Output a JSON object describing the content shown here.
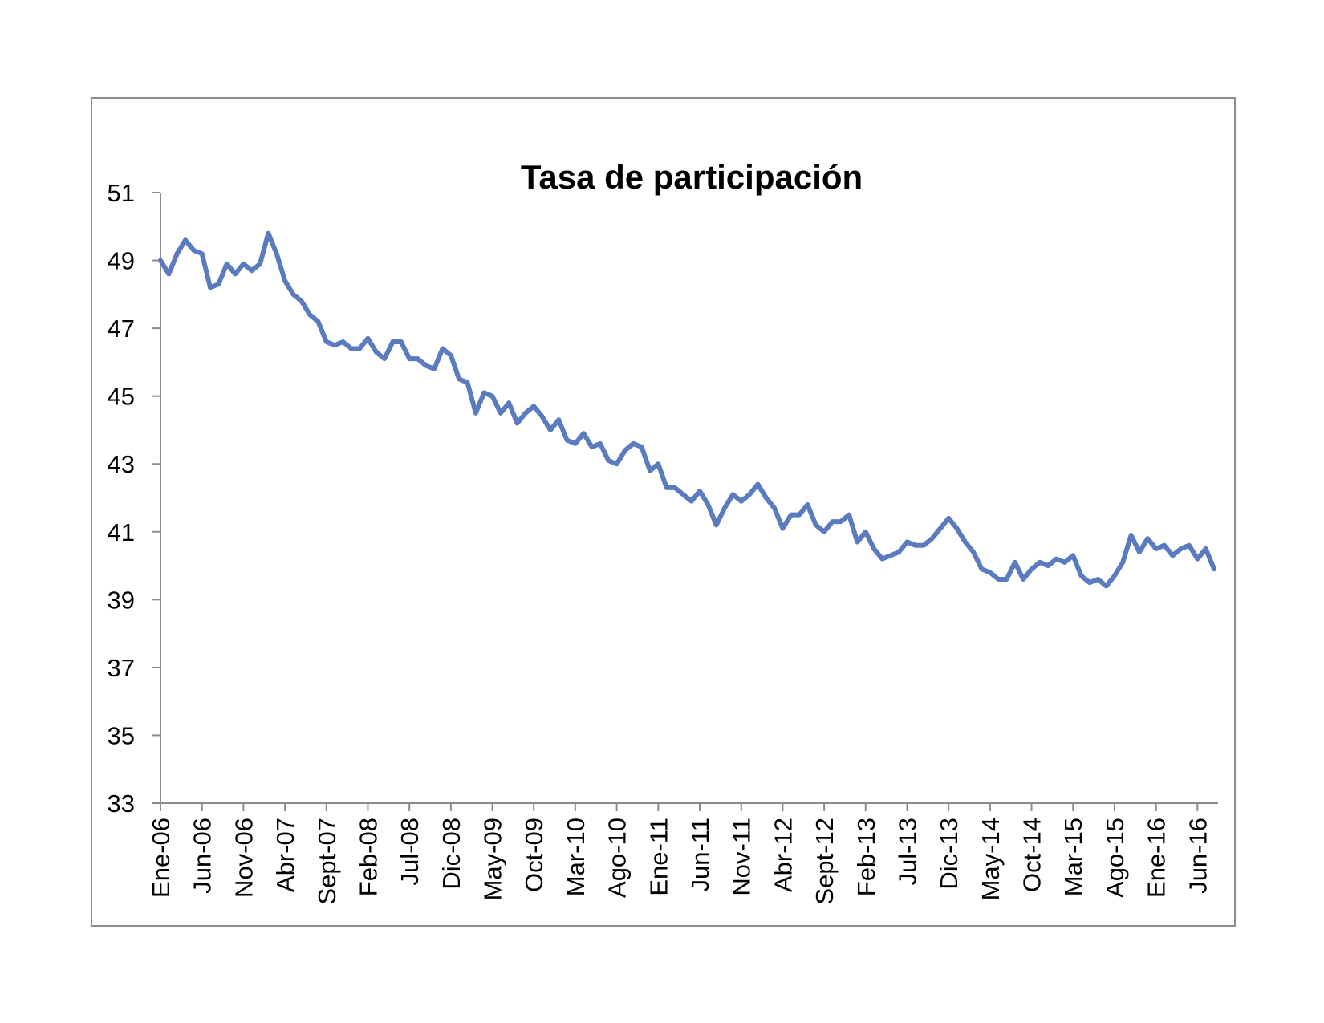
{
  "chart_data": {
    "type": "line",
    "title": "Tasa de participación",
    "xlabel": "",
    "ylabel": "",
    "ylim": [
      33,
      51
    ],
    "yticks": [
      33,
      35,
      37,
      39,
      41,
      43,
      45,
      47,
      49,
      51
    ],
    "x_tick_labels": [
      "Ene-06",
      "Jun-06",
      "Nov-06",
      "Abr-07",
      "Sept-07",
      "Feb-08",
      "Jul-08",
      "Dic-08",
      "May-09",
      "Oct-09",
      "Mar-10",
      "Ago-10",
      "Ene-11",
      "Jun-11",
      "Nov-11",
      "Abr-12",
      "Sept-12",
      "Feb-13",
      "Jul-13",
      "Dic-13",
      "May-14",
      "Oct-14",
      "Mar-15",
      "Ago-15",
      "Ene-16",
      "Jun-16"
    ],
    "x_tick_every_n_months": 5,
    "grid": false,
    "legend": "none",
    "series": [
      {
        "color": "#5b7bbf",
        "values": [
          49.0,
          48.6,
          49.2,
          49.6,
          49.3,
          49.2,
          48.2,
          48.3,
          48.9,
          48.6,
          48.9,
          48.7,
          48.9,
          49.8,
          49.2,
          48.4,
          48.0,
          47.8,
          47.4,
          47.2,
          46.6,
          46.5,
          46.6,
          46.4,
          46.4,
          46.7,
          46.3,
          46.1,
          46.6,
          46.6,
          46.1,
          46.1,
          45.9,
          45.8,
          46.4,
          46.2,
          45.5,
          45.4,
          44.5,
          45.1,
          45.0,
          44.5,
          44.8,
          44.2,
          44.5,
          44.7,
          44.4,
          44.0,
          44.3,
          43.7,
          43.6,
          43.9,
          43.5,
          43.6,
          43.1,
          43.0,
          43.4,
          43.6,
          43.5,
          42.8,
          43.0,
          42.3,
          42.3,
          42.1,
          41.9,
          42.2,
          41.8,
          41.2,
          41.7,
          42.1,
          41.9,
          42.1,
          42.4,
          42.0,
          41.7,
          41.1,
          41.5,
          41.5,
          41.8,
          41.2,
          41.0,
          41.3,
          41.3,
          41.5,
          40.7,
          41.0,
          40.5,
          40.2,
          40.3,
          40.4,
          40.7,
          40.6,
          40.6,
          40.8,
          41.1,
          41.4,
          41.1,
          40.7,
          40.4,
          39.9,
          39.8,
          39.6,
          39.6,
          40.1,
          39.6,
          39.9,
          40.1,
          40.0,
          40.2,
          40.1,
          40.3,
          39.7,
          39.5,
          39.6,
          39.4,
          39.7,
          40.1,
          40.9,
          40.4,
          40.8,
          40.5,
          40.6,
          40.3,
          40.5,
          40.6,
          40.2,
          40.5,
          39.9
        ]
      }
    ]
  },
  "colors": {
    "line": "#5b7bbf",
    "axis": "#8c8c8c",
    "frame": "#8c8c8c"
  }
}
